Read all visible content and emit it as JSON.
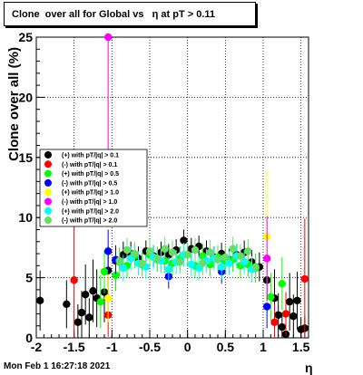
{
  "title": "Clone  over all for Global vs   η at pT > 0.11",
  "timestamp": "Mon Feb  1 16:27:18 2021",
  "chart_data": {
    "type": "scatter",
    "title": "Clone  over all for Global vs   η at pT > 0.11",
    "xlabel": "η",
    "ylabel": "Clone  over all (%)",
    "xlim": [
      -2,
      1.6
    ],
    "ylim": [
      0,
      25
    ],
    "x_ticks": [
      "-2",
      "-1.5",
      "-1",
      "-0.5",
      "0",
      "0.5",
      "1",
      "1.5"
    ],
    "y_ticks": [
      "0",
      "5",
      "10",
      "15",
      "20",
      "25"
    ],
    "grid": true,
    "legend_position": "left-middle",
    "series": [
      {
        "name": "(+) with pT/|q| > 0.1",
        "color": "#000000",
        "x": [
          -1.95,
          -1.6,
          -1.45,
          -1.4,
          -1.35,
          -1.3,
          -1.25,
          -1.2,
          -1.1,
          -1.05,
          -0.95,
          -0.85,
          -0.75,
          -0.65,
          -0.55,
          -0.45,
          -0.35,
          -0.25,
          -0.15,
          -0.05,
          0.05,
          0.15,
          0.25,
          0.35,
          0.45,
          0.55,
          0.65,
          0.75,
          0.85,
          0.95,
          1.05,
          1.15,
          1.2,
          1.25,
          1.3,
          1.35,
          1.4,
          1.45,
          1.5,
          1.55
        ],
        "y": [
          3.1,
          2.8,
          1.3,
          2.1,
          3.6,
          1.7,
          3.9,
          3.3,
          3.8,
          5.6,
          6.4,
          6.9,
          7.0,
          6.6,
          7.2,
          6.8,
          7.1,
          6.9,
          7.3,
          8.1,
          7.4,
          7.6,
          7.2,
          6.7,
          7.0,
          6.5,
          6.9,
          7.1,
          6.3,
          5.9,
          4.8,
          3.3,
          1.9,
          0.9,
          0.3,
          3.0,
          1.8,
          3.1,
          0.7,
          0.8
        ],
        "errors": [
          2.5,
          2.0,
          1.5,
          1.8,
          2.5,
          1.6,
          2.6,
          2.4,
          2.5,
          2.0,
          1.2,
          1.1,
          1.0,
          1.0,
          0.9,
          0.9,
          0.9,
          0.9,
          0.9,
          0.9,
          0.9,
          0.9,
          0.9,
          0.9,
          0.9,
          0.9,
          0.9,
          1.0,
          1.0,
          1.2,
          2.0,
          2.4,
          1.8,
          1.2,
          0.7,
          2.4,
          1.8,
          2.4,
          1.0,
          1.0
        ]
      },
      {
        "name": "(-) with pT/|q| > 0.1",
        "color": "#ff0000",
        "x": [
          -1.5,
          -1.05,
          1.15,
          1.3,
          1.55
        ],
        "y": [
          4.8,
          1.9,
          1.3,
          2.0,
          4.9
        ],
        "errors": [
          5.0,
          1.8,
          1.5,
          1.8,
          5.0
        ]
      },
      {
        "name": "(+) with pT/|q| > 0.5",
        "color": "#00ff00",
        "x": [
          -1.15,
          -1.1,
          -0.95,
          -0.9,
          -0.8,
          -0.7,
          -0.6,
          -0.5,
          -0.4,
          -0.3,
          -0.2,
          -0.1,
          0.0,
          0.1,
          0.2,
          0.3,
          0.4,
          0.5,
          0.6,
          0.7,
          0.8,
          0.9,
          1.1,
          1.25
        ],
        "y": [
          3.0,
          5.5,
          5.2,
          6.3,
          6.0,
          6.8,
          6.1,
          6.9,
          6.5,
          6.4,
          6.2,
          6.6,
          6.9,
          6.0,
          6.8,
          6.1,
          6.7,
          6.3,
          6.5,
          6.0,
          6.1,
          5.8,
          3.4,
          4.5
        ],
        "errors": [
          2.2,
          1.8,
          1.3,
          1.2,
          1.0,
          1.0,
          1.0,
          1.0,
          1.0,
          1.0,
          1.0,
          1.0,
          1.0,
          1.0,
          1.0,
          1.0,
          1.0,
          1.0,
          1.0,
          1.0,
          1.0,
          1.2,
          2.0,
          2.2
        ]
      },
      {
        "name": "(-) with pT/|q| > 0.5",
        "color": "#0000ff",
        "x": [
          -1.05,
          -0.95,
          -0.25,
          0.45,
          1.05
        ],
        "y": [
          7.2,
          6.5,
          5.1,
          5.5,
          2.6
        ],
        "errors": [
          1.8,
          1.2,
          1.0,
          1.0,
          1.8
        ]
      },
      {
        "name": "(+) with pT/|q| > 1.0",
        "color": "#ffff00",
        "x": [
          -1.05,
          1.05
        ],
        "y": [
          3.3,
          8.4
        ],
        "errors": [
          2.0,
          5.5
        ]
      },
      {
        "name": "(-) with pT/|q| > 1.0",
        "color": "#ff00ff",
        "x": [
          -1.05,
          1.05
        ],
        "y": [
          25.0,
          6.6
        ],
        "errors": [
          12.0,
          3.5
        ]
      },
      {
        "name": "(+) with pT/|q| > 2.0",
        "color": "#00ffff",
        "x": [
          -0.85,
          -0.75,
          -0.65,
          -0.55,
          -0.45,
          -0.35,
          -0.25,
          -0.15,
          -0.05,
          0.05,
          0.15,
          0.25,
          0.35,
          0.45,
          0.55,
          0.65,
          0.75,
          0.85
        ],
        "y": [
          5.8,
          6.6,
          6.2,
          5.9,
          6.7,
          6.4,
          5.7,
          6.3,
          6.9,
          6.1,
          5.8,
          6.4,
          6.6,
          5.9,
          6.2,
          6.8,
          6.3,
          5.7
        ],
        "errors": [
          1.1,
          1.0,
          1.0,
          1.0,
          1.0,
          1.0,
          1.0,
          1.0,
          1.0,
          1.0,
          1.0,
          1.0,
          1.0,
          1.0,
          1.0,
          1.0,
          1.0,
          1.1
        ]
      },
      {
        "name": "(-) with pT/|q| > 2.0",
        "color": "#66dd66",
        "x": [
          -0.9,
          -0.8,
          -0.7,
          -0.6,
          -0.5,
          -0.4,
          -0.3,
          -0.2,
          -0.1,
          0.0,
          0.1,
          0.2,
          0.3,
          0.4,
          0.5,
          0.6,
          0.7,
          0.8,
          0.9
        ],
        "y": [
          6.4,
          7.3,
          7.0,
          6.2,
          7.2,
          6.6,
          7.4,
          7.1,
          6.3,
          6.9,
          7.3,
          6.2,
          7.1,
          6.5,
          6.7,
          7.4,
          6.8,
          7.2,
          5.9
        ],
        "errors": [
          1.1,
          1.0,
          1.0,
          1.0,
          1.0,
          1.0,
          1.0,
          1.0,
          1.0,
          1.0,
          1.0,
          1.0,
          1.0,
          1.0,
          1.0,
          1.0,
          1.0,
          1.0,
          1.1
        ]
      }
    ]
  }
}
